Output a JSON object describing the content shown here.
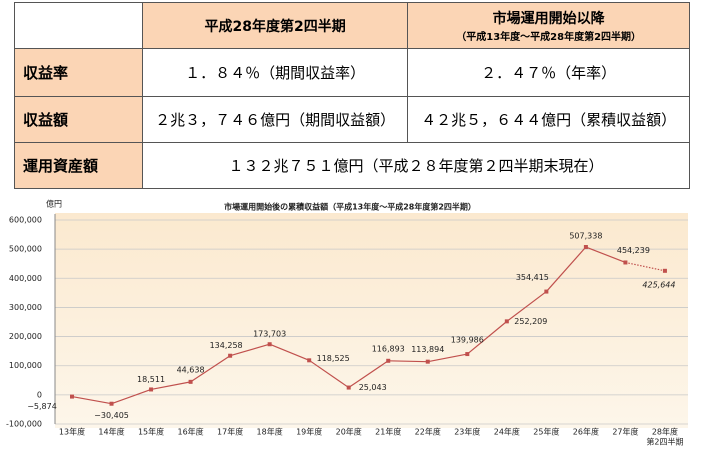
{
  "table": {
    "columns": [
      {
        "title": "平成28年度第2四半期"
      },
      {
        "title": "市場運用開始以降",
        "subtitle": "（平成13年度～平成28年度第2四半期）"
      }
    ],
    "rows": [
      {
        "label": "収益率",
        "cells": [
          "１．８４％（期間収益率）",
          "２．４７％（年率）"
        ]
      },
      {
        "label": "収益額",
        "cells": [
          "２兆３，７４６億円（期間収益額）",
          "４２兆５，６４４億円（累積収益額）"
        ]
      },
      {
        "label": "運用資産額",
        "cells": [
          "１３２兆７５１億円（平成２８年度第２四半期末現在）"
        ]
      }
    ]
  },
  "chart_data": {
    "type": "line",
    "title": "市場運用開始後の累積収益額（平成13年度～平成28年度第2四半期）",
    "y_unit": "億円",
    "categories": [
      "13年度",
      "14年度",
      "15年度",
      "16年度",
      "17年度",
      "18年度",
      "19年度",
      "20年度",
      "21年度",
      "22年度",
      "23年度",
      "24年度",
      "25年度",
      "26年度",
      "27年度",
      "28年度"
    ],
    "last_category_note": "第2四半期",
    "values": [
      -5874,
      -30405,
      18511,
      44638,
      134258,
      173703,
      118525,
      25043,
      116893,
      113894,
      139986,
      252209,
      354415,
      507338,
      454239,
      425644
    ],
    "value_labels": [
      "−5,874",
      "−30,405",
      "18,511",
      "44,638",
      "134,258",
      "173,703",
      "118,525",
      "25,043",
      "116,893",
      "113,894",
      "139,986",
      "252,209",
      "354,415",
      "507,338",
      "454,239",
      "425,644"
    ],
    "color": "#c0504d",
    "last_segment_style": "dotted",
    "ylim": [
      -100000,
      600000
    ],
    "yticks": [
      {
        "value": -100000,
        "label": "-100,000"
      },
      0,
      {
        "value": 100000,
        "label": "100,000"
      },
      {
        "value": 200000,
        "label": "200,000"
      },
      {
        "value": 300000,
        "label": "300,000"
      },
      {
        "value": 400000,
        "label": "400,000"
      },
      {
        "value": 500000,
        "label": "500,000"
      },
      {
        "value": 600000,
        "label": "600,000"
      }
    ],
    "grid": true
  }
}
